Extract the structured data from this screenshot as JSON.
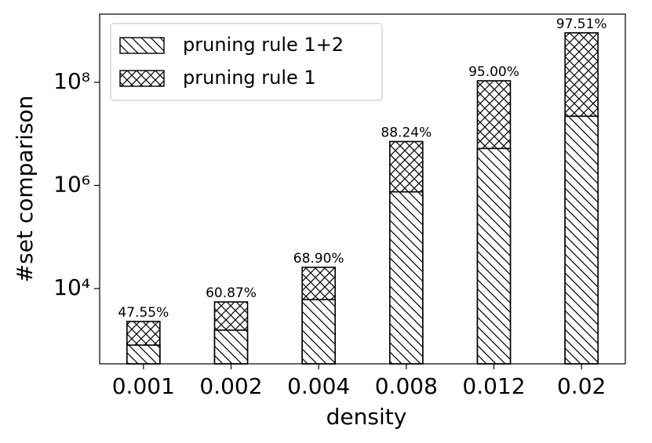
{
  "chart_data": {
    "type": "bar",
    "xlabel": "density",
    "ylabel": "#set comparison",
    "categories": [
      "0.001",
      "0.002",
      "0.004",
      "0.008",
      "0.012",
      "0.02"
    ],
    "series": [
      {
        "name": "pruning rule 1",
        "color": "#000000",
        "hatch": "xx",
        "values": [
          2300,
          5500,
          25800,
          7100000,
          107000000,
          910000000
        ]
      },
      {
        "name": "pruning rule 1+2",
        "color": "#000000",
        "hatch": "\\\\",
        "values": [
          800,
          1560,
          6100,
          750000,
          5200000,
          22000000
        ]
      }
    ],
    "bar_labels": [
      "47.55%",
      "60.87%",
      "68.90%",
      "88.24%",
      "95.00%",
      "97.51%"
    ],
    "yscale": "log",
    "ylim": [
      347,
      2100000000
    ],
    "yticks": [
      {
        "value": 10000,
        "label": "10⁴"
      },
      {
        "value": 1000000,
        "label": "10⁶"
      },
      {
        "value": 100000000,
        "label": "10⁸"
      }
    ],
    "legend": "upper left"
  }
}
